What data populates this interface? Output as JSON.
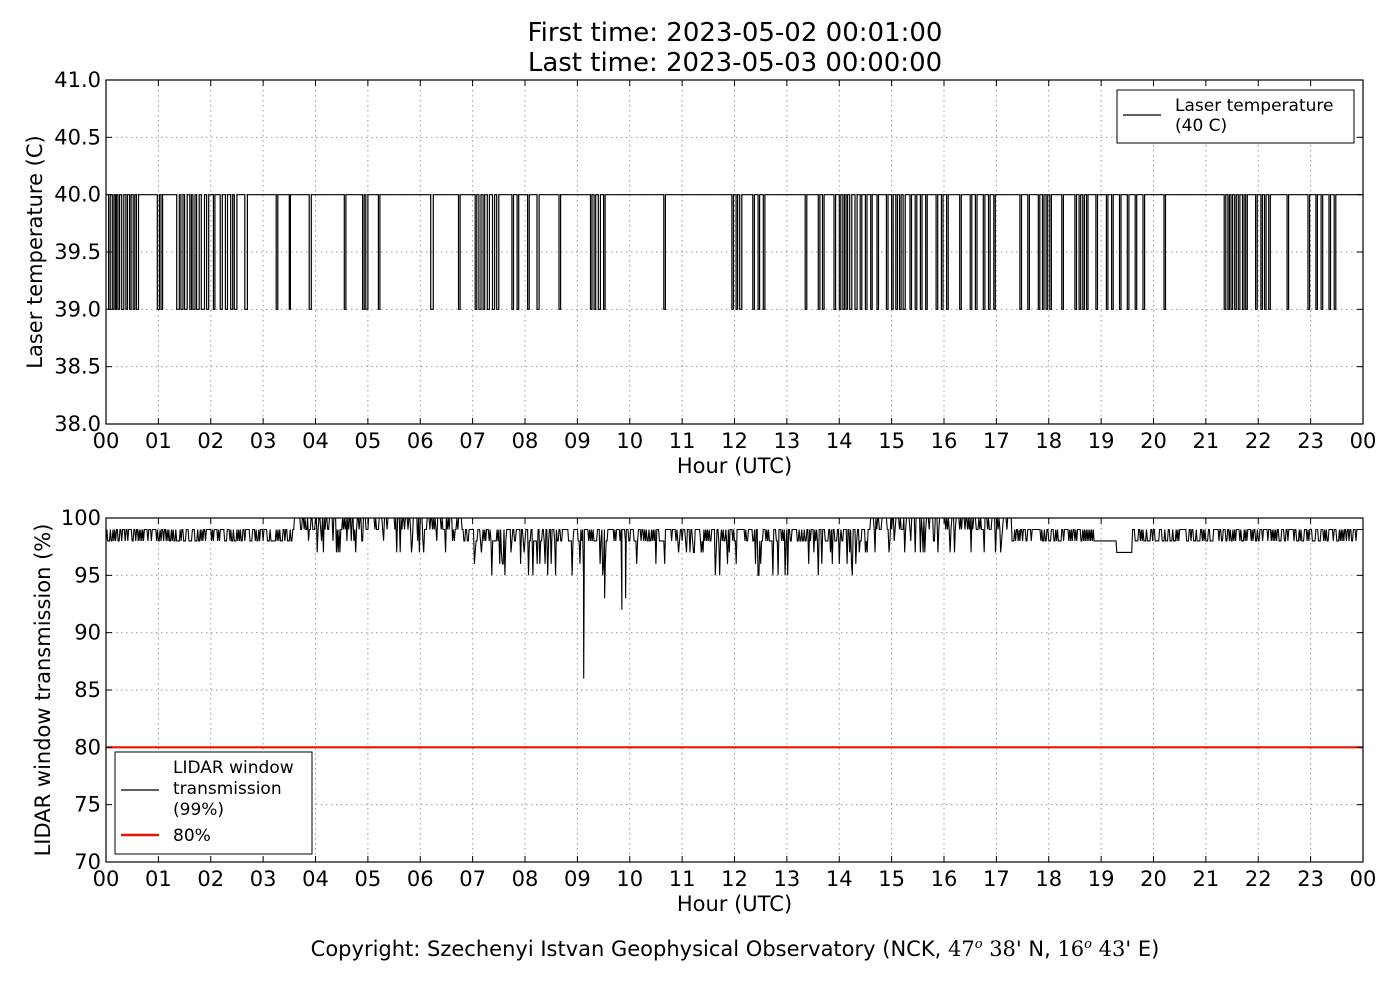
{
  "title": {
    "line1": "First time: 2023-05-02 00:01:00",
    "line2": "Last time: 2023-05-03 00:00:00"
  },
  "footer": {
    "prefix": "Copyright: Szechenyi Istvan Geophysical Observatory (NCK, ",
    "lat_deg": "47",
    "lat_deg_sup": "o",
    "lat_min": " 38",
    "lat_suffix": "' N, ",
    "lon_deg": "16",
    "lon_deg_sup": "o",
    "lon_min": " 43",
    "lon_suffix": "' E)"
  },
  "chart_data": [
    {
      "type": "line",
      "ylabel": "Laser temperature (C)",
      "xlabel": "Hour (UTC)",
      "xlim": [
        0,
        24
      ],
      "ylim": [
        38.0,
        41.0
      ],
      "xticks": [
        "00",
        "01",
        "02",
        "03",
        "04",
        "05",
        "06",
        "07",
        "08",
        "09",
        "10",
        "11",
        "12",
        "13",
        "14",
        "15",
        "16",
        "17",
        "18",
        "19",
        "20",
        "21",
        "22",
        "23",
        "00"
      ],
      "yticks": [
        "38.0",
        "38.5",
        "39.0",
        "39.5",
        "40.0",
        "40.5",
        "41.0"
      ],
      "grid": true,
      "legend_position": "top-right",
      "series": [
        {
          "name": "Laser temperature\n(40 C)",
          "color": "#000000",
          "baseline": 40.0,
          "dip_value": 39.0,
          "dips": [
            [
              0.05,
              0.08
            ],
            [
              0.12,
              0.15
            ],
            [
              0.18,
              0.2
            ],
            [
              0.23,
              0.26
            ],
            [
              0.3,
              0.34
            ],
            [
              0.38,
              0.41
            ],
            [
              0.45,
              0.48
            ],
            [
              0.52,
              0.55
            ],
            [
              0.58,
              0.62
            ],
            [
              0.98,
              1.02
            ],
            [
              1.05,
              1.08
            ],
            [
              1.35,
              1.4
            ],
            [
              1.43,
              1.47
            ],
            [
              1.5,
              1.55
            ],
            [
              1.6,
              1.63
            ],
            [
              1.66,
              1.7
            ],
            [
              1.73,
              1.78
            ],
            [
              1.82,
              1.88
            ],
            [
              1.92,
              1.96
            ],
            [
              2.05,
              2.08
            ],
            [
              2.18,
              2.22
            ],
            [
              2.28,
              2.32
            ],
            [
              2.38,
              2.42
            ],
            [
              2.45,
              2.5
            ],
            [
              2.65,
              2.7
            ],
            [
              3.25,
              3.28
            ],
            [
              3.5,
              3.52
            ],
            [
              3.88,
              3.92
            ],
            [
              4.55,
              4.58
            ],
            [
              4.9,
              4.93
            ],
            [
              4.96,
              5.0
            ],
            [
              5.2,
              5.23
            ],
            [
              6.2,
              6.25
            ],
            [
              6.73,
              6.76
            ],
            [
              7.05,
              7.08
            ],
            [
              7.12,
              7.16
            ],
            [
              7.2,
              7.23
            ],
            [
              7.28,
              7.32
            ],
            [
              7.38,
              7.42
            ],
            [
              7.46,
              7.5
            ],
            [
              7.75,
              7.78
            ],
            [
              7.85,
              7.88
            ],
            [
              8.05,
              8.08
            ],
            [
              8.23,
              8.27
            ],
            [
              8.65,
              8.68
            ],
            [
              9.25,
              9.28
            ],
            [
              9.32,
              9.35
            ],
            [
              9.4,
              9.44
            ],
            [
              9.5,
              9.53
            ],
            [
              10.65,
              10.68
            ],
            [
              11.95,
              11.98
            ],
            [
              12.03,
              12.06
            ],
            [
              12.1,
              12.14
            ],
            [
              12.35,
              12.38
            ],
            [
              12.45,
              12.48
            ],
            [
              12.55,
              12.58
            ],
            [
              13.35,
              13.38
            ],
            [
              13.6,
              13.63
            ],
            [
              13.68,
              13.71
            ],
            [
              13.9,
              13.93
            ],
            [
              14.0,
              14.03
            ],
            [
              14.07,
              14.1
            ],
            [
              14.13,
              14.16
            ],
            [
              14.2,
              14.24
            ],
            [
              14.3,
              14.34
            ],
            [
              14.4,
              14.43
            ],
            [
              14.5,
              14.53
            ],
            [
              14.6,
              14.63
            ],
            [
              14.72,
              14.75
            ],
            [
              14.9,
              14.93
            ],
            [
              15.0,
              15.03
            ],
            [
              15.08,
              15.11
            ],
            [
              15.15,
              15.18
            ],
            [
              15.22,
              15.26
            ],
            [
              15.35,
              15.38
            ],
            [
              15.45,
              15.48
            ],
            [
              15.55,
              15.58
            ],
            [
              15.65,
              15.68
            ],
            [
              15.85,
              15.88
            ],
            [
              15.95,
              15.98
            ],
            [
              16.05,
              16.08
            ],
            [
              16.3,
              16.33
            ],
            [
              16.5,
              16.53
            ],
            [
              16.6,
              16.63
            ],
            [
              16.75,
              16.78
            ],
            [
              16.85,
              16.88
            ],
            [
              16.95,
              16.98
            ],
            [
              17.45,
              17.48
            ],
            [
              17.6,
              17.63
            ],
            [
              17.8,
              17.83
            ],
            [
              17.88,
              17.91
            ],
            [
              17.95,
              17.98
            ],
            [
              18.02,
              18.05
            ],
            [
              18.25,
              18.28
            ],
            [
              18.5,
              18.53
            ],
            [
              18.58,
              18.61
            ],
            [
              18.65,
              18.68
            ],
            [
              18.72,
              18.75
            ],
            [
              18.9,
              18.93
            ],
            [
              19.1,
              19.13
            ],
            [
              19.2,
              19.23
            ],
            [
              19.35,
              19.38
            ],
            [
              19.5,
              19.53
            ],
            [
              19.65,
              19.68
            ],
            [
              19.8,
              19.83
            ],
            [
              20.2,
              20.23
            ],
            [
              21.35,
              21.38
            ],
            [
              21.42,
              21.45
            ],
            [
              21.48,
              21.51
            ],
            [
              21.55,
              21.58
            ],
            [
              21.62,
              21.65
            ],
            [
              21.7,
              21.73
            ],
            [
              21.76,
              21.79
            ],
            [
              21.95,
              21.98
            ],
            [
              22.05,
              22.08
            ],
            [
              22.12,
              22.15
            ],
            [
              22.2,
              22.23
            ],
            [
              22.55,
              22.58
            ],
            [
              22.95,
              22.98
            ],
            [
              23.1,
              23.13
            ],
            [
              23.2,
              23.23
            ],
            [
              23.35,
              23.38
            ],
            [
              23.45,
              23.48
            ]
          ]
        }
      ]
    },
    {
      "type": "line",
      "ylabel": "LIDAR window transmission (%)",
      "xlabel": "Hour (UTC)",
      "xlim": [
        0,
        24
      ],
      "ylim": [
        70,
        100
      ],
      "xticks": [
        "00",
        "01",
        "02",
        "03",
        "04",
        "05",
        "06",
        "07",
        "08",
        "09",
        "10",
        "11",
        "12",
        "13",
        "14",
        "15",
        "16",
        "17",
        "18",
        "19",
        "20",
        "21",
        "22",
        "23",
        "00"
      ],
      "yticks": [
        "70",
        "75",
        "80",
        "85",
        "90",
        "95",
        "100"
      ],
      "grid": true,
      "legend_position": "bottom-left",
      "series": [
        {
          "name": "LIDAR window\ntransmission\n(99%)",
          "color": "#000000",
          "baseline": 99,
          "segments": [
            {
              "from": 0.0,
              "to": 3.6,
              "values": [
                99,
                98
              ]
            },
            {
              "from": 3.6,
              "to": 6.8,
              "values": [
                100,
                99,
                98,
                97
              ]
            },
            {
              "from": 6.8,
              "to": 11.0,
              "values": [
                99,
                98,
                97,
                96,
                95
              ]
            },
            {
              "from": 11.0,
              "to": 14.6,
              "values": [
                99,
                98,
                97,
                96,
                95
              ]
            },
            {
              "from": 14.6,
              "to": 17.3,
              "values": [
                100,
                99,
                98,
                97
              ]
            },
            {
              "from": 17.3,
              "to": 18.9,
              "values": [
                99,
                98
              ]
            },
            {
              "from": 18.9,
              "to": 19.3,
              "values": [
                98
              ]
            },
            {
              "from": 19.3,
              "to": 19.6,
              "values": [
                97
              ]
            },
            {
              "from": 19.6,
              "to": 23.9,
              "values": [
                99,
                98
              ]
            }
          ],
          "spikes": [
            [
              9.12,
              86
            ],
            [
              9.52,
              93
            ],
            [
              9.85,
              92
            ],
            [
              9.92,
              93
            ]
          ]
        },
        {
          "name": "80%",
          "color": "#e8140c",
          "constant": 80
        }
      ]
    }
  ]
}
